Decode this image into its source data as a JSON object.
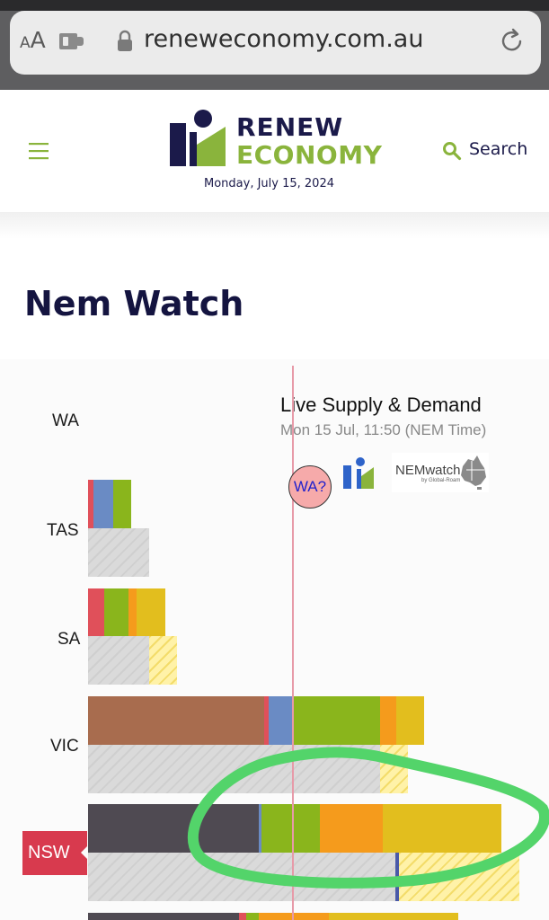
{
  "browser": {
    "aa_label_small": "A",
    "aa_label_big": "A",
    "url": "reneweconomy.com.au",
    "icons": [
      "extension-icon",
      "lock-icon",
      "reload-icon"
    ]
  },
  "header": {
    "menu_icon": "hamburger-menu-icon",
    "logo_line1": "RENEW",
    "logo_line2": "ECONOMY",
    "date": "Monday, July 15, 2024",
    "search_label": "Search",
    "colors": {
      "navy": "#1b1a4a",
      "green": "#8ab43c"
    }
  },
  "page": {
    "title": "Nem Watch"
  },
  "widget": {
    "title": "Live Supply & Demand",
    "subtitle": "Mon 15 Jul, 11:50 (NEM Time)",
    "wa_badge": "WA?",
    "nemwatch_logo": "NEMwatch",
    "nemwatch_by": "by Global-Roam",
    "regions": [
      "WA",
      "TAS",
      "SA",
      "VIC",
      "NSW"
    ],
    "selected_region": "NSW",
    "fuel_colors": {
      "brown_coal": "#a86c4e",
      "black_coal": "#4f4a52",
      "gas": "#e0505a",
      "hydro": "#6a8bc4",
      "wind": "#8ab51c",
      "solar_rooftop": "#f59b1c",
      "solar_utility": "#e2be1e"
    }
  }
}
